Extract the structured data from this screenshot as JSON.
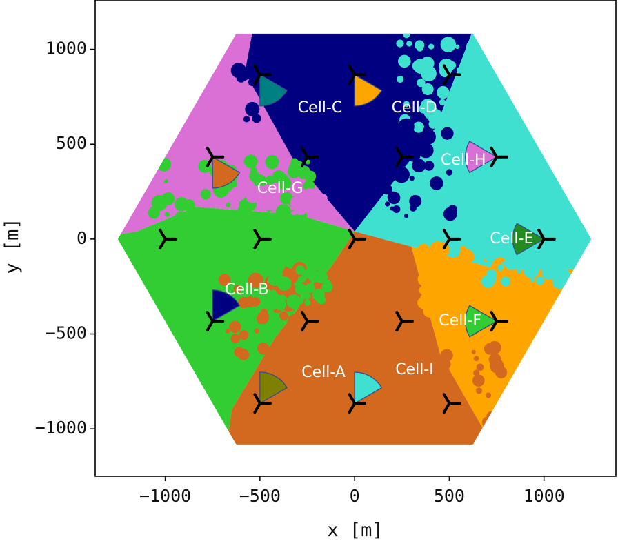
{
  "chart_data": {
    "type": "scatter",
    "xlabel": "x [m]",
    "ylabel": "y [m]",
    "xlim": [
      -1370,
      1380
    ],
    "ylim": [
      -1250,
      1260
    ],
    "xticks": [
      -1000,
      -500,
      0,
      500,
      1000
    ],
    "xtick_labels": [
      "−1000",
      "−500",
      "0",
      "500",
      "1000"
    ],
    "yticks": [
      1000,
      500,
      0,
      -500,
      -1000
    ],
    "ytick_labels": [
      "1000",
      "500",
      "0",
      "−500",
      "−1000"
    ],
    "grid": false,
    "region_colors": {
      "navy": "#000080",
      "turquoise": "#40e0d0",
      "orchid": "#da70d6",
      "limegreen": "#32cd32",
      "chocolate": "#d2691e",
      "orange": "#ffa500"
    },
    "base_stations": [
      {
        "x": -500,
        "y": 866
      },
      {
        "x": 0,
        "y": 866
      },
      {
        "x": 500,
        "y": 866
      },
      {
        "x": -750,
        "y": 433
      },
      {
        "x": -250,
        "y": 433
      },
      {
        "x": 250,
        "y": 433
      },
      {
        "x": 750,
        "y": 433
      },
      {
        "x": -1000,
        "y": 0
      },
      {
        "x": -500,
        "y": 0
      },
      {
        "x": 0,
        "y": 0
      },
      {
        "x": 500,
        "y": 0
      },
      {
        "x": 1000,
        "y": 0
      },
      {
        "x": -750,
        "y": -433
      },
      {
        "x": -250,
        "y": -433
      },
      {
        "x": 250,
        "y": -433
      },
      {
        "x": 750,
        "y": -433
      },
      {
        "x": -500,
        "y": -866
      },
      {
        "x": 0,
        "y": -866
      },
      {
        "x": 500,
        "y": -866
      }
    ],
    "cells": [
      {
        "name": "Cell-A",
        "bs_x": -500,
        "bs_y": -866,
        "azimuth": 60,
        "color": "#808000",
        "label_x": -280,
        "label_y": -705
      },
      {
        "name": "Cell-B",
        "bs_x": -750,
        "bs_y": -433,
        "azimuth": 60,
        "color": "#000080",
        "label_x": -685,
        "label_y": -270
      },
      {
        "name": "Cell-C",
        "bs_x": -500,
        "bs_y": 866,
        "azimuth": 300,
        "color": "#008080",
        "label_x": -300,
        "label_y": 690
      },
      {
        "name": "Cell-D",
        "bs_x": 0,
        "bs_y": 866,
        "azimuth": 300,
        "color": "#ffa500",
        "label_x": 195,
        "label_y": 690
      },
      {
        "name": "Cell-E",
        "bs_x": 1000,
        "bs_y": 0,
        "azimuth": 180,
        "color": "#228b22",
        "label_x": 715,
        "label_y": 0
      },
      {
        "name": "Cell-F",
        "bs_x": 750,
        "bs_y": -433,
        "azimuth": 180,
        "color": "#32cd32",
        "label_x": 445,
        "label_y": -433
      },
      {
        "name": "Cell-G",
        "bs_x": -750,
        "bs_y": 433,
        "azimuth": 300,
        "color": "#d2691e",
        "label_x": -515,
        "label_y": 265
      },
      {
        "name": "Cell-H",
        "bs_x": 750,
        "bs_y": 433,
        "azimuth": 180,
        "color": "#da70d6",
        "label_x": 455,
        "label_y": 413
      },
      {
        "name": "Cell-I",
        "bs_x": 0,
        "bs_y": -866,
        "azimuth": 60,
        "color": "#40e0d0",
        "label_x": 215,
        "label_y": -690
      }
    ]
  }
}
